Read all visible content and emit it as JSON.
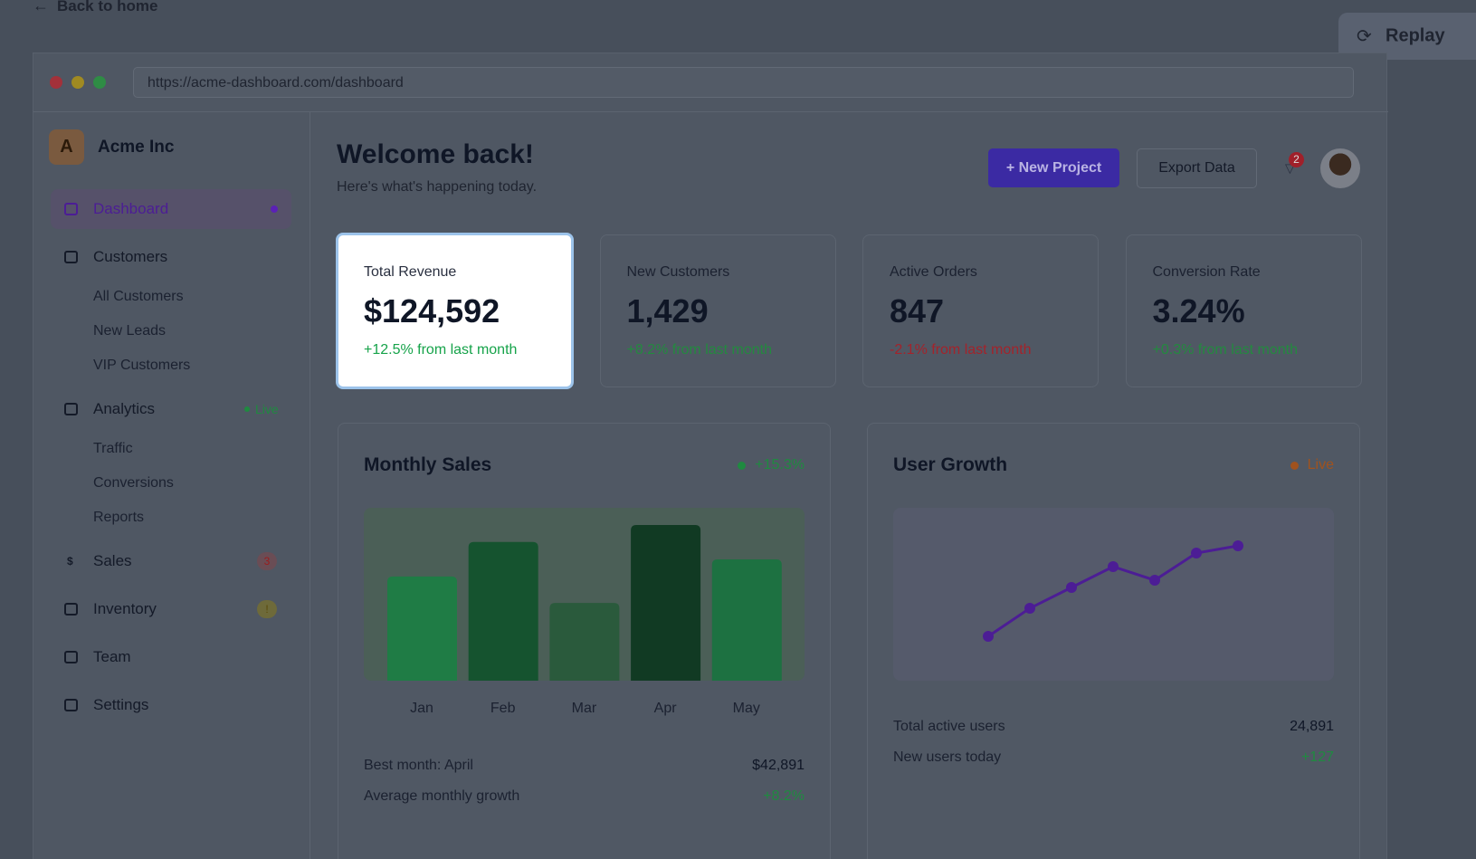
{
  "top": {
    "back_link": "Back to home",
    "replay_button": "Replay"
  },
  "browser": {
    "url": "https://acme-dashboard.com/dashboard"
  },
  "sidebar": {
    "brand_initial": "A",
    "brand": "Acme Inc",
    "nav": [
      {
        "label": "Dashboard"
      },
      {
        "label": "Customers",
        "children": [
          "All Customers",
          "New Leads",
          "VIP Customers"
        ]
      },
      {
        "label": "Analytics",
        "badge": "Live",
        "children": [
          "Traffic",
          "Conversions",
          "Reports"
        ]
      },
      {
        "label": "Sales",
        "icon": "$",
        "badge": "3"
      },
      {
        "label": "Inventory",
        "badge": "!"
      },
      {
        "label": "Team"
      },
      {
        "label": "Settings"
      }
    ]
  },
  "header": {
    "title": "Welcome back!",
    "subtitle": "Here's what's happening today.",
    "new_project": "+ New Project",
    "export": "Export Data",
    "notifications": "2"
  },
  "stats": [
    {
      "label": "Total Revenue",
      "value": "$124,592",
      "change": "+12.5% from last month",
      "trend": "up"
    },
    {
      "label": "New Customers",
      "value": "1,429",
      "change": "+8.2% from last month",
      "trend": "up"
    },
    {
      "label": "Active Orders",
      "value": "847",
      "change": "-2.1% from last month",
      "trend": "down"
    },
    {
      "label": "Conversion Rate",
      "value": "3.24%",
      "change": "+0.3% from last month",
      "trend": "up"
    }
  ],
  "chart_data": [
    {
      "type": "bar",
      "title": "Monthly Sales",
      "badge": "+15.3%",
      "categories": [
        "Jan",
        "Feb",
        "Mar",
        "Apr",
        "May"
      ],
      "values": [
        28700,
        38200,
        21400,
        42891,
        33400
      ],
      "colors": [
        "#1f7c45",
        "#15532f",
        "#2a5a3c",
        "#113a23",
        "#1d7141"
      ],
      "summary": [
        {
          "label": "Best month: April",
          "value": "$42,891"
        },
        {
          "label": "Average monthly growth",
          "value": "+8.2%"
        }
      ]
    },
    {
      "type": "line",
      "title": "User Growth",
      "badge": "Live",
      "values": [
        49,
        80,
        103,
        126,
        111,
        141,
        149
      ],
      "color": "#4c1d95",
      "summary": [
        {
          "label": "Total active users",
          "value": "24,891"
        },
        {
          "label": "New users today",
          "value": "+127"
        }
      ]
    }
  ]
}
